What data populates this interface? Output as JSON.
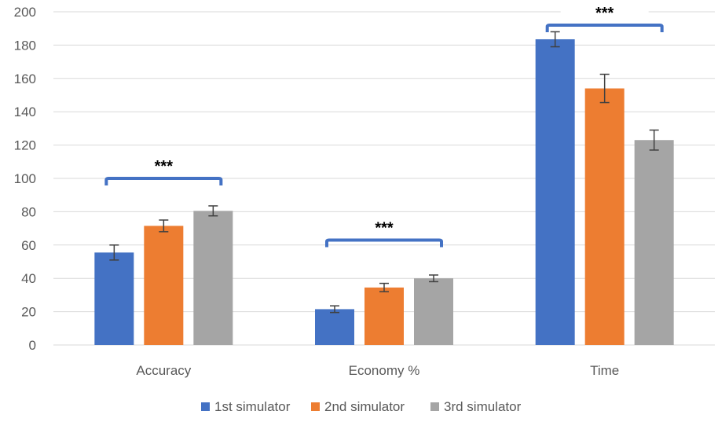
{
  "chart_data": {
    "type": "bar",
    "title": "",
    "xlabel": "",
    "ylabel": "",
    "categories": [
      "Accuracy",
      "Economy %",
      "Time"
    ],
    "series": [
      {
        "name": "1st simulator",
        "color": "#4472C4",
        "values": [
          55.5,
          21.5,
          183.5
        ],
        "errors": [
          4.5,
          2.0,
          4.5
        ]
      },
      {
        "name": "2nd simulator",
        "color": "#ED7D31",
        "values": [
          71.5,
          34.5,
          154.0
        ],
        "errors": [
          3.5,
          2.5,
          8.5
        ]
      },
      {
        "name": "3rd simulator",
        "color": "#A5A5A5",
        "values": [
          80.5,
          40.0,
          123.0
        ],
        "errors": [
          3.0,
          2.0,
          6.0
        ]
      }
    ],
    "ylim": [
      0,
      200
    ],
    "yticks": [
      0,
      20,
      40,
      60,
      80,
      100,
      120,
      140,
      160,
      180,
      200
    ],
    "grid": true,
    "legend_position": "bottom",
    "annotations": [
      {
        "category": "Accuracy",
        "text": "***",
        "bracket_color": "#4472C4",
        "level": 100
      },
      {
        "category": "Economy %",
        "text": "***",
        "bracket_color": "#4472C4",
        "level": 63
      },
      {
        "category": "Time",
        "text": "***",
        "bracket_color": "#4472C4",
        "level": 192
      }
    ]
  }
}
